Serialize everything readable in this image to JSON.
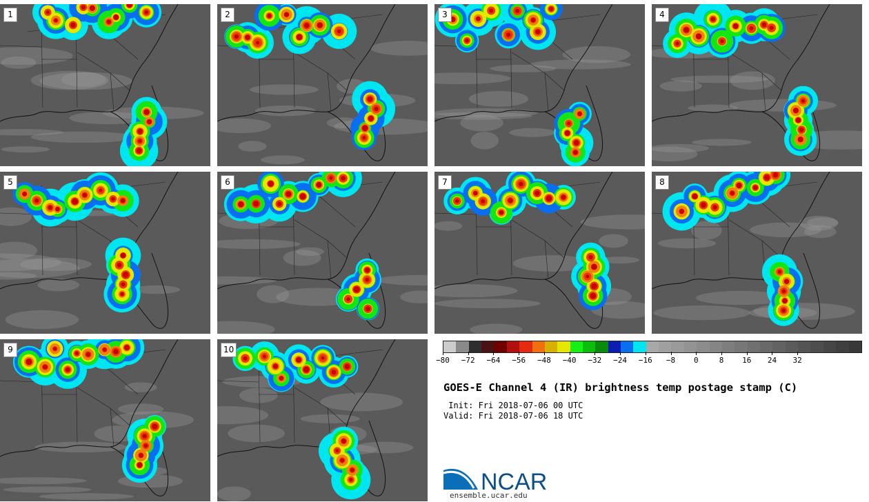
{
  "panels": [
    "1",
    "2",
    "3",
    "4",
    "5",
    "6",
    "7",
    "8",
    "9",
    "10"
  ],
  "colorbar": {
    "colors": [
      "#cccccc",
      "#8a8a8a",
      "#2e2e2e",
      "#4a1212",
      "#6e0000",
      "#b40f0f",
      "#e62a0f",
      "#f07010",
      "#d8b000",
      "#e6e600",
      "#14f014",
      "#0abe0a",
      "#0a8c0a",
      "#0a1eb4",
      "#0a6ef0",
      "#00e6f0",
      "#a8a8a8",
      "#a0a0a0",
      "#9a9a9a",
      "#939393",
      "#8c8c8c",
      "#858585",
      "#7e7e7e",
      "#777777",
      "#707070",
      "#696969",
      "#626262",
      "#5b5b5b",
      "#545454",
      "#4d4d4d",
      "#464646",
      "#3f3f3f",
      "#383838"
    ],
    "ticks": [
      "−80",
      "−72",
      "−64",
      "−56",
      "−48",
      "−40",
      "−32",
      "−24",
      "−16",
      "−8",
      "0",
      "8",
      "16",
      "24",
      "32"
    ],
    "min": -80,
    "max": 52
  },
  "title": "GOES-E Channel 4 (IR) brightness temp postage stamp (C)",
  "init": " Init: Fri 2018-07-06 00 UTC",
  "valid": "Valid: Fri 2018-07-06 18 UTC",
  "logo": {
    "text": "NCAR",
    "color": "#0a4f8c"
  },
  "site": "ensemble.ucar.edu",
  "cloud_palette": [
    "#c80000",
    "#e83a0a",
    "#f08010",
    "#e6e600",
    "#14e614",
    "#0a9a0a",
    "#0a6ef0",
    "#00e6f0"
  ]
}
